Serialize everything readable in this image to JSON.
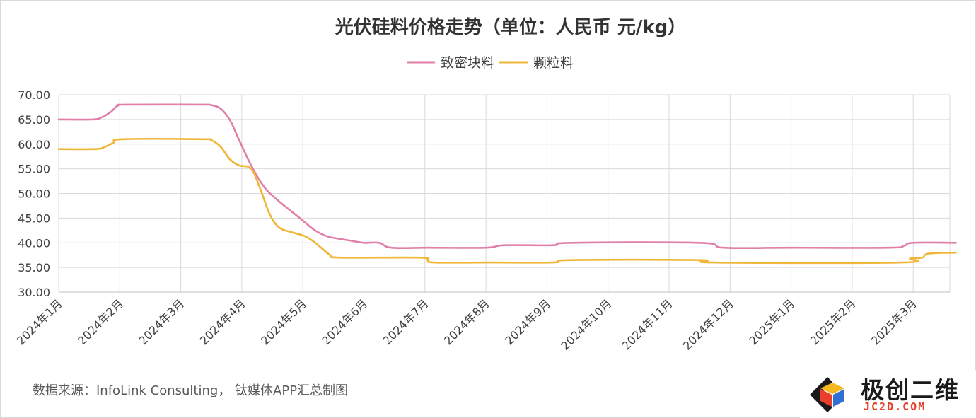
{
  "chart_data": {
    "type": "line",
    "title": "光伏硅料价格走势（单位：人民币 元/kg）",
    "xlabel": "",
    "ylabel": "",
    "ylim": [
      30,
      70
    ],
    "yticks": [
      "30.00",
      "35.00",
      "40.00",
      "45.00",
      "50.00",
      "55.00",
      "60.00",
      "65.00",
      "70.00"
    ],
    "grid": true,
    "legend_position": "top-center",
    "x_tick_labels": [
      "2024年1月",
      "2024年2月",
      "2024年3月",
      "2024年4月",
      "2024年5月",
      "2024年6月",
      "2024年7月",
      "2024年8月",
      "2024年9月",
      "2024年10月",
      "2024年11月",
      "2024年12月",
      "2025年1月",
      "2025年2月",
      "2025年3月"
    ],
    "x_range": [
      0,
      14.7
    ],
    "series": [
      {
        "name": "致密块料",
        "color": "#e07fa8",
        "points": [
          [
            0,
            65
          ],
          [
            0.55,
            65
          ],
          [
            0.7,
            65.4
          ],
          [
            0.85,
            66.5
          ],
          [
            0.97,
            67.8
          ],
          [
            1.1,
            68
          ],
          [
            2.3,
            68
          ],
          [
            2.5,
            67.9
          ],
          [
            2.65,
            67.2
          ],
          [
            2.8,
            65
          ],
          [
            2.95,
            61
          ],
          [
            3.1,
            57
          ],
          [
            3.25,
            53.5
          ],
          [
            3.4,
            50.8
          ],
          [
            3.6,
            48.5
          ],
          [
            3.8,
            46.5
          ],
          [
            4.0,
            44.5
          ],
          [
            4.2,
            42.5
          ],
          [
            4.4,
            41.3
          ],
          [
            4.6,
            40.8
          ],
          [
            4.8,
            40.4
          ],
          [
            5.0,
            40
          ],
          [
            5.25,
            40
          ],
          [
            5.45,
            39
          ],
          [
            6.05,
            39
          ],
          [
            7.0,
            39
          ],
          [
            7.3,
            39.5
          ],
          [
            8.1,
            39.5
          ],
          [
            8.4,
            40
          ],
          [
            10.5,
            40
          ],
          [
            10.9,
            39
          ],
          [
            12.0,
            39
          ],
          [
            13.6,
            39
          ],
          [
            13.85,
            39.4
          ],
          [
            14.0,
            40
          ],
          [
            14.7,
            40
          ]
        ]
      },
      {
        "name": "颗粒料",
        "color": "#f0b63a",
        "points": [
          [
            0,
            59
          ],
          [
            0.6,
            59
          ],
          [
            0.75,
            59.4
          ],
          [
            0.9,
            60.3
          ],
          [
            1.05,
            61
          ],
          [
            2.35,
            61
          ],
          [
            2.5,
            60.8
          ],
          [
            2.65,
            59.5
          ],
          [
            2.8,
            57
          ],
          [
            2.95,
            55.7
          ],
          [
            3.15,
            55
          ],
          [
            3.3,
            51
          ],
          [
            3.45,
            46
          ],
          [
            3.6,
            43.2
          ],
          [
            3.8,
            42.2
          ],
          [
            4.0,
            41.5
          ],
          [
            4.15,
            40.5
          ],
          [
            4.3,
            39
          ],
          [
            4.45,
            37.5
          ],
          [
            4.6,
            37
          ],
          [
            5.9,
            37
          ],
          [
            6.05,
            36.5
          ],
          [
            6.15,
            36
          ],
          [
            7.05,
            36
          ],
          [
            8.1,
            36
          ],
          [
            8.4,
            36.5
          ],
          [
            10.5,
            36.5
          ],
          [
            10.75,
            36
          ],
          [
            13.8,
            36
          ],
          [
            13.95,
            36.8
          ],
          [
            14.15,
            37
          ],
          [
            14.25,
            37.8
          ],
          [
            14.7,
            38
          ]
        ]
      }
    ]
  },
  "source": "数据来源：InfoLink Consulting， 钛媒体APP汇总制图",
  "logo": {
    "name": "极创二维",
    "domain": "JC2D.COM",
    "colors": [
      "#e8402a",
      "#f5b820",
      "#2f6fd6",
      "#1a1a1a"
    ]
  }
}
